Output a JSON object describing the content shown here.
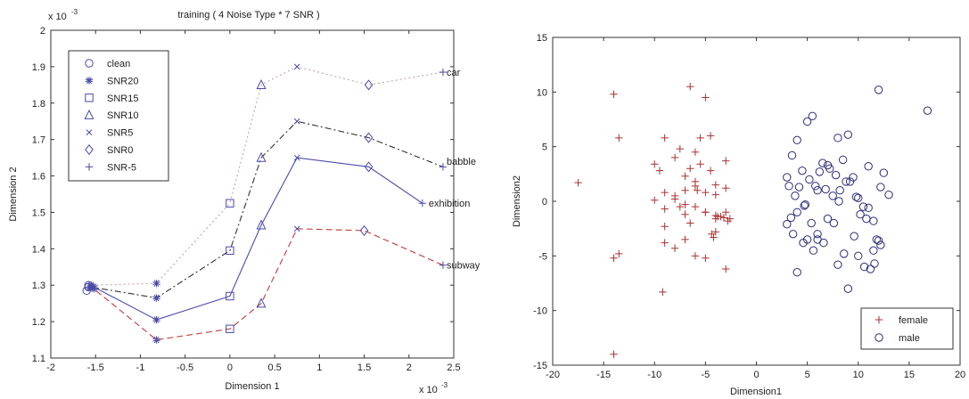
{
  "chart_data": [
    {
      "type": "line",
      "title": "training ( 4 Noise Type * 7 SNR )",
      "xlabel": "Dimension 1",
      "ylabel": "Dimension 2",
      "x_exponent": "x 10",
      "x_exponent_power": "-3",
      "y_exponent": "x 10",
      "y_exponent_power": "-3",
      "xlim": [
        -2,
        2.5
      ],
      "ylim": [
        1.1,
        2.0
      ],
      "xticks": [
        -2,
        -1.5,
        -1,
        -0.5,
        0,
        0.5,
        1,
        1.5,
        2,
        2.5
      ],
      "yticks": [
        1.1,
        1.2,
        1.3,
        1.4,
        1.5,
        1.6,
        1.7,
        1.8,
        1.9,
        2.0
      ],
      "xtick_labels": [
        "-2",
        "-1.5",
        "-1",
        "-0.5",
        "0",
        "0.5",
        "1",
        "1.5",
        "2",
        "2.5"
      ],
      "ytick_labels": [
        "1.1",
        "1.2",
        "1.3",
        "1.4",
        "1.5",
        "1.6",
        "1.7",
        "1.8",
        "1.9",
        "2"
      ],
      "legend": {
        "position": "top-left",
        "entries": [
          {
            "label": "clean",
            "marker": "circle"
          },
          {
            "label": "SNR20",
            "marker": "star"
          },
          {
            "label": "SNR15",
            "marker": "square"
          },
          {
            "label": "SNR10",
            "marker": "triangle"
          },
          {
            "label": "SNR5",
            "marker": "x"
          },
          {
            "label": "SNR0",
            "marker": "diamond"
          },
          {
            "label": "SNR-5",
            "marker": "plus"
          }
        ]
      },
      "snr_markers": [
        "circle",
        "star",
        "square",
        "triangle",
        "x",
        "diamond",
        "plus"
      ],
      "series": [
        {
          "name": "car",
          "color": "#c8a0a6",
          "dash": "2,3",
          "x": [
            -1.58,
            -1.55,
            -0.82,
            0.0,
            0.35,
            0.75,
            1.55,
            2.38
          ],
          "y": [
            1.295,
            1.3,
            1.305,
            1.525,
            1.85,
            1.9,
            1.85,
            1.885
          ],
          "markers": [
            "circle",
            "star",
            "star",
            "square",
            "triangle",
            "x",
            "diamond",
            "plus"
          ]
        },
        {
          "name": "babble",
          "color": "#333333",
          "dash": "7,3,2,3",
          "x": [
            -1.58,
            -1.55,
            -0.82,
            0.0,
            0.35,
            0.75,
            1.55,
            2.38
          ],
          "y": [
            1.295,
            1.295,
            1.265,
            1.395,
            1.65,
            1.75,
            1.705,
            1.625
          ],
          "markers": [
            "circle",
            "star",
            "star",
            "square",
            "triangle",
            "x",
            "diamond",
            "plus"
          ]
        },
        {
          "name": "exhibition",
          "color": "#4a4aa8",
          "dash": "",
          "x": [
            -1.6,
            -1.52,
            -0.82,
            0.0,
            0.35,
            0.75,
            1.55,
            2.15
          ],
          "y": [
            1.285,
            1.295,
            1.205,
            1.27,
            1.465,
            1.65,
            1.625,
            1.525
          ],
          "markers": [
            "circle",
            "star",
            "star",
            "square",
            "triangle",
            "x",
            "diamond",
            "plus"
          ]
        },
        {
          "name": "subway",
          "color": "#c03a3a",
          "dash": "7,4",
          "x": [
            -1.58,
            -1.52,
            -0.82,
            0.0,
            0.35,
            0.75,
            1.5,
            2.38
          ],
          "y": [
            1.3,
            1.29,
            1.15,
            1.18,
            1.25,
            1.455,
            1.45,
            1.355
          ],
          "markers": [
            "circle",
            "star",
            "star",
            "square",
            "triangle",
            "x",
            "diamond",
            "plus"
          ]
        }
      ],
      "annotations": [
        {
          "text": "car",
          "x": 2.42,
          "y": 1.885
        },
        {
          "text": "babble",
          "x": 2.42,
          "y": 1.64
        },
        {
          "text": "exhibition",
          "x": 2.22,
          "y": 1.525
        },
        {
          "text": "subway",
          "x": 2.42,
          "y": 1.355
        }
      ]
    },
    {
      "type": "scatter",
      "title": "",
      "xlabel": "Dimension1",
      "ylabel": "Dimension2",
      "xlim": [
        -20,
        20
      ],
      "ylim": [
        -15,
        15
      ],
      "xticks": [
        -20,
        -15,
        -10,
        -5,
        0,
        5,
        10,
        15,
        20
      ],
      "yticks": [
        -15,
        -10,
        -5,
        0,
        5,
        10,
        15
      ],
      "xtick_labels": [
        "-20",
        "-15",
        "-10",
        "-5",
        "0",
        "5",
        "10",
        "15",
        "20"
      ],
      "ytick_labels": [
        "-15",
        "-10",
        "-5",
        "0",
        "5",
        "10",
        "15"
      ],
      "legend": {
        "position": "bottom-right",
        "entries": [
          {
            "label": "female",
            "marker": "plus",
            "color": "#a83232"
          },
          {
            "label": "male",
            "marker": "circle",
            "color": "#2c2c7a"
          }
        ]
      },
      "series": [
        {
          "name": "female",
          "marker": "plus",
          "color": "#a83232",
          "x": [
            -14,
            -13.5,
            -6.5,
            -5,
            -9,
            -7.5,
            -6,
            -4.5,
            -3,
            -8,
            -10,
            -9.5,
            -7,
            -6.5,
            -5.5,
            -4.5,
            -4,
            -3,
            -9,
            -8,
            -7,
            -6,
            -5,
            -4,
            -3,
            -3.5,
            -4,
            -5,
            -6,
            -7,
            -8,
            -9,
            -10,
            -17.5,
            -14,
            -13.5,
            -9,
            -8,
            -7,
            -6,
            -5,
            -4,
            -3,
            -3.2,
            -5.5,
            -4.4,
            -4.2,
            -3.8,
            -2.8,
            -9,
            -7.5,
            -6.5,
            -5,
            -4,
            -7,
            -9.2,
            -14,
            -5.8,
            -6,
            -2.6
          ],
          "y": [
            9.8,
            5.8,
            10.5,
            9.5,
            5.8,
            4.8,
            4.5,
            6.0,
            3.7,
            4.0,
            3.4,
            2.8,
            2.3,
            3.0,
            3.4,
            2.8,
            1.5,
            1.2,
            0.8,
            0.5,
            1.0,
            1.8,
            0.8,
            0.6,
            -1.0,
            -1.4,
            -1.6,
            -1.0,
            -0.5,
            -0.3,
            0.2,
            -0.7,
            0.1,
            1.7,
            -5.2,
            -4.8,
            -2.3,
            -4.3,
            -3.5,
            -5.0,
            -5.2,
            -2.8,
            -6.2,
            -1.5,
            5.8,
            -3.0,
            -3.3,
            -1.4,
            -1.8,
            -3.8,
            -0.5,
            -2.0,
            -1.0,
            -1.3,
            -1.2,
            -8.3,
            -14,
            1.0,
            1.4,
            -1.6
          ]
        },
        {
          "name": "male",
          "marker": "circle",
          "color": "#2c2c7a",
          "x": [
            3,
            3.5,
            4,
            4.5,
            5,
            5.5,
            6,
            6.5,
            7,
            7.5,
            8,
            8.5,
            9,
            9.5,
            10,
            10.5,
            11,
            11.5,
            12,
            12.5,
            13,
            3.2,
            3.8,
            4.2,
            4.8,
            5.2,
            5.8,
            6.2,
            6.8,
            7.2,
            7.8,
            8.2,
            8.8,
            9.2,
            9.8,
            10.2,
            10.8,
            11.2,
            11.8,
            12.2,
            3.0,
            3.6,
            4.0,
            4.6,
            5.0,
            5.6,
            6.0,
            6.6,
            7.0,
            7.6,
            8.0,
            8.6,
            9.0,
            9.6,
            10.0,
            10.6,
            11.0,
            11.6,
            12.0,
            16.8,
            12.2,
            5.4,
            4.0,
            8.1,
            6.0,
            4.7,
            3.4,
            11.5
          ],
          "y": [
            2.2,
            4.2,
            5.6,
            2.8,
            7.3,
            7.8,
            1.0,
            3.5,
            3.3,
            0.5,
            5.8,
            3.8,
            6.1,
            2.2,
            0.3,
            -0.5,
            3.2,
            -4.5,
            10.2,
            2.6,
            0.6,
            1.4,
            0.5,
            1.3,
            -0.3,
            2.0,
            1.4,
            2.7,
            1.1,
            3.0,
            2.4,
            1.0,
            1.8,
            1.8,
            0.4,
            -1.2,
            -1.6,
            -6.2,
            -3.5,
            -4.0,
            -2.1,
            -3.0,
            -6.5,
            -3.8,
            -3.5,
            -4.5,
            -3.0,
            -3.8,
            -1.6,
            -2.0,
            -5.8,
            -4.8,
            -8.0,
            -3.2,
            -5.0,
            -6.0,
            -0.6,
            -5.7,
            -3.6,
            8.3,
            1.3,
            -2.0,
            -1.0,
            0.0,
            -3.5,
            -0.4,
            -1.5,
            -1.8
          ]
        }
      ]
    }
  ]
}
